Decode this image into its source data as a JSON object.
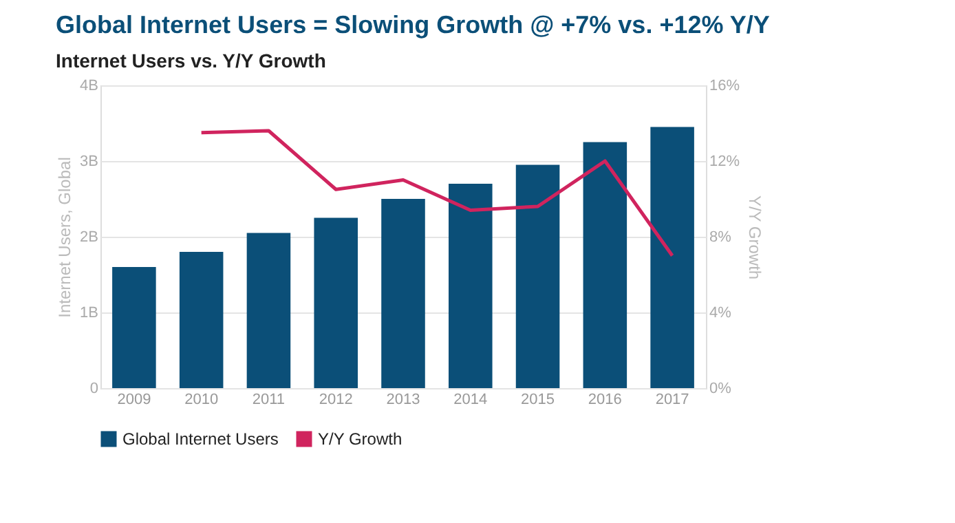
{
  "chart_data": {
    "type": "bar",
    "title": "Global Internet Users = Slowing Growth @ +7% vs. +12% Y/Y",
    "subtitle": "Internet Users vs. Y/Y Growth",
    "categories": [
      "2009",
      "2010",
      "2011",
      "2012",
      "2013",
      "2014",
      "2015",
      "2016",
      "2017"
    ],
    "series": [
      {
        "name": "Global Internet Users",
        "color": "#0b4f78",
        "values": [
          1.6,
          1.8,
          2.05,
          2.25,
          2.5,
          2.7,
          2.95,
          3.25,
          3.45
        ]
      },
      {
        "name": "Y/Y Growth",
        "type": "line",
        "axis": "y2",
        "color": "#d0245e",
        "values": [
          null,
          13.5,
          13.6,
          10.5,
          11,
          9.4,
          9.6,
          12,
          7
        ]
      }
    ],
    "ylabel": "Internet Users, Global",
    "y2label": "Y/Y Growth",
    "ylim": [
      0,
      4
    ],
    "yticks": [
      0,
      {
        "value": 1,
        "label": "1B"
      },
      {
        "value": 2,
        "label": "2B"
      },
      {
        "value": 3,
        "label": "3B"
      },
      {
        "value": 4,
        "label": "4B"
      }
    ],
    "y2lim": [
      0,
      16
    ],
    "y2ticks": [
      {
        "value": 0,
        "label": "0%"
      },
      {
        "value": 4,
        "label": "4%"
      },
      {
        "value": 8,
        "label": "8%"
      },
      {
        "value": 12,
        "label": "12%"
      },
      {
        "value": 16,
        "label": "16%"
      }
    ],
    "grid": "y",
    "legend": "bottom"
  }
}
